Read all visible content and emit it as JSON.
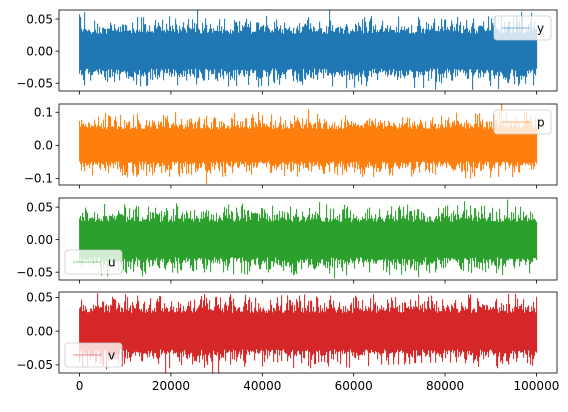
{
  "chart_data": [
    {
      "type": "line",
      "legend": "top-right",
      "series": [
        {
          "name": "y",
          "color": "#1f77b4",
          "amplitude": 0.02,
          "peak": 0.055
        }
      ],
      "xlim": [
        -4500,
        104500
      ],
      "ylim": [
        -0.062,
        0.064
      ],
      "yticks": [
        -0.05,
        0.0,
        0.05
      ],
      "ytick_labels": [
        "−0.05",
        "0.00",
        "0.05"
      ],
      "x_range": [
        0,
        99999
      ],
      "xticks": [
        0,
        20000,
        40000,
        60000,
        80000,
        100000
      ],
      "xtick_labels": []
    },
    {
      "type": "line",
      "legend": "top-right",
      "series": [
        {
          "name": "p",
          "color": "#ff7f0e",
          "amplitude": 0.036,
          "peak": 0.11
        }
      ],
      "xlim": [
        -4500,
        104500
      ],
      "ylim": [
        -0.12,
        0.125
      ],
      "yticks": [
        -0.1,
        0.0,
        0.1
      ],
      "ytick_labels": [
        "−0.1",
        "0.0",
        "0.1"
      ],
      "x_range": [
        0,
        99999
      ],
      "xticks": [
        0,
        20000,
        40000,
        60000,
        80000,
        100000
      ],
      "xtick_labels": []
    },
    {
      "type": "line",
      "legend": "bottom-left",
      "series": [
        {
          "name": "u",
          "color": "#2ca02c",
          "amplitude": 0.02,
          "peak": 0.058
        }
      ],
      "xlim": [
        -4500,
        104500
      ],
      "ylim": [
        -0.062,
        0.064
      ],
      "yticks": [
        -0.05,
        0.0,
        0.05
      ],
      "ytick_labels": [
        "−0.05",
        "0.00",
        "0.05"
      ],
      "x_range": [
        0,
        99999
      ],
      "xticks": [
        0,
        20000,
        40000,
        60000,
        80000,
        100000
      ],
      "xtick_labels": []
    },
    {
      "type": "line",
      "legend": "bottom-left",
      "series": [
        {
          "name": "v",
          "color": "#d62728",
          "amplitude": 0.02,
          "peak": 0.055
        }
      ],
      "xlim": [
        -4500,
        104500
      ],
      "ylim": [
        -0.062,
        0.058
      ],
      "yticks": [
        -0.05,
        0.0,
        0.05
      ],
      "ytick_labels": [
        "−0.05",
        "0.00",
        "0.05"
      ],
      "x_range": [
        0,
        99999
      ],
      "xticks": [
        0,
        20000,
        40000,
        60000,
        80000,
        100000
      ],
      "xtick_labels": [
        "0",
        "20000",
        "40000",
        "60000",
        "80000",
        "100000"
      ]
    }
  ]
}
